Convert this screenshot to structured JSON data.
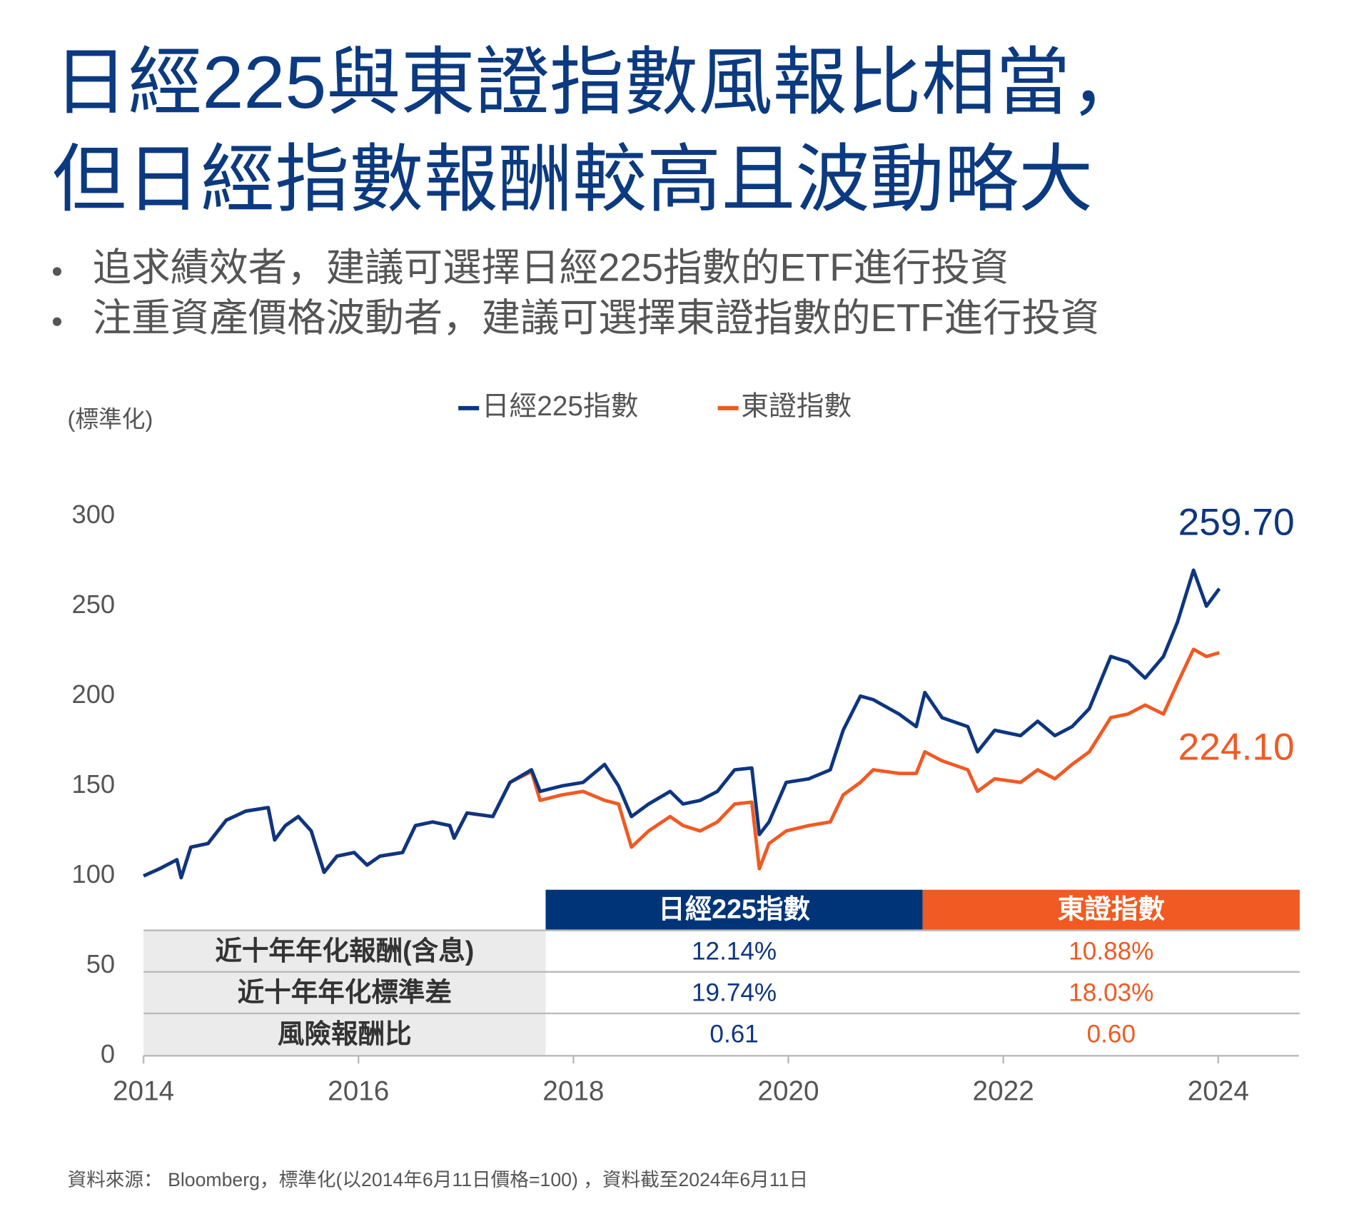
{
  "title": [
    "日經225與東證指數風報比相當，",
    "但日經指數報酬較高且波動略大"
  ],
  "bullets": [
    "追求績效者，建議可選擇日經225指數的ETF進行投資",
    "注重資產價格波動者，建議可選擇東證指數的ETF進行投資"
  ],
  "chart_data": {
    "type": "line",
    "y_label": "(標準化)",
    "x": [
      2014.0,
      2014.15,
      2014.31,
      2014.35,
      2014.44,
      2014.6,
      2014.77,
      2014.95,
      2015.16,
      2015.22,
      2015.32,
      2015.44,
      2015.56,
      2015.68,
      2015.8,
      2015.96,
      2016.08,
      2016.2,
      2016.41,
      2016.53,
      2016.69,
      2016.85,
      2016.89,
      2017.01,
      2017.25,
      2017.41,
      2017.61,
      2017.69,
      2017.89,
      2018.09,
      2018.29,
      2018.42,
      2018.54,
      2018.7,
      2018.9,
      2019.02,
      2019.18,
      2019.34,
      2019.5,
      2019.66,
      2019.73,
      2019.82,
      2019.98,
      2020.19,
      2020.39,
      2020.51,
      2020.67,
      2020.79,
      2021.03,
      2021.19,
      2021.27,
      2021.43,
      2021.67,
      2021.76,
      2021.92,
      2022.16,
      2022.32,
      2022.48,
      2022.64,
      2022.8,
      2023.0,
      2023.16,
      2023.32,
      2023.49,
      2023.62,
      2023.77,
      2023.89,
      2024.01
    ],
    "series": [
      {
        "name": "日經225指數",
        "color": "#0d3680",
        "last_value_label": "259.70",
        "values": [
          100,
          104,
          109,
          99,
          116,
          118,
          131,
          136,
          138,
          120,
          128,
          133,
          125,
          102,
          111,
          113,
          106,
          111,
          113,
          128,
          130,
          128,
          121,
          135,
          133,
          152,
          159,
          147,
          150,
          152,
          162,
          150,
          133,
          140,
          147,
          140,
          142,
          147,
          159,
          160,
          123,
          130,
          152,
          154,
          159,
          181,
          200,
          198,
          190,
          183,
          202,
          188,
          183,
          169,
          181,
          178,
          186,
          178,
          183,
          193,
          222,
          219,
          210,
          222,
          241,
          270,
          250,
          259.7
        ]
      },
      {
        "name": "東證指數",
        "color": "#f05a23",
        "last_value_label": "224.10",
        "values": [
          100,
          104,
          109,
          99,
          116,
          118,
          131,
          136,
          138,
          120,
          128,
          133,
          125,
          102,
          111,
          113,
          106,
          111,
          113,
          128,
          130,
          128,
          121,
          135,
          133,
          152,
          158,
          142,
          145,
          147,
          142,
          140,
          116,
          125,
          133,
          128,
          125,
          130,
          140,
          141,
          104,
          118,
          125,
          128,
          130,
          145,
          152,
          159,
          157,
          157,
          169,
          164,
          159,
          147,
          154,
          152,
          159,
          154,
          162,
          169,
          188,
          190,
          195,
          190,
          207,
          226,
          222,
          224.1
        ]
      }
    ],
    "xlim": [
      2014,
      2024.75
    ],
    "xticks": [
      2014,
      2016,
      2018,
      2020,
      2022,
      2024
    ],
    "ylim": [
      0,
      300
    ],
    "yticks": [
      0,
      50,
      100,
      150,
      200,
      250,
      300
    ]
  },
  "table": {
    "headers": [
      "日經225指數",
      "東證指數"
    ],
    "rows": [
      [
        "近十年年化報酬(含息)",
        "12.14%",
        "10.88%"
      ],
      [
        "近十年年化標準差",
        "19.74%",
        "18.03%"
      ],
      [
        "風險報酬比",
        "0.61",
        "0.60"
      ]
    ],
    "header_colors": [
      "#003478",
      "#f15a22"
    ]
  },
  "source": "資料來源： Bloomberg，標準化(以2014年6月11日價格=100) ，資料截至2024年6月11日"
}
